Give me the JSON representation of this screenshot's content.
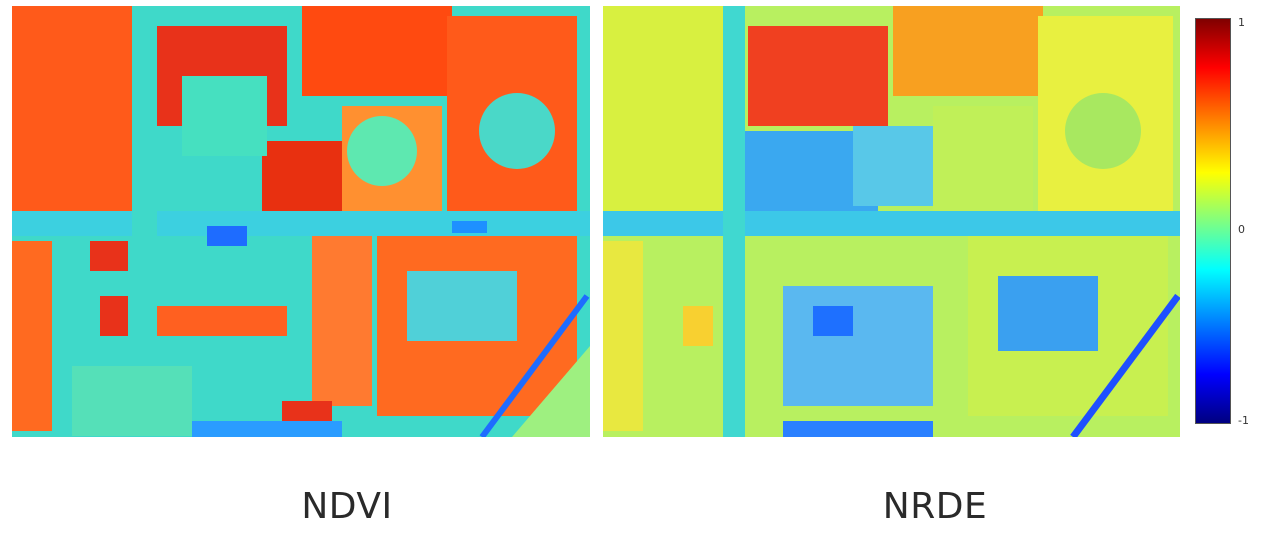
{
  "panels": [
    {
      "id": "ndvi",
      "label": "NDVI"
    },
    {
      "id": "nrde",
      "label": "NRDE"
    }
  ],
  "colorbar": {
    "ticks": [
      "1",
      "0",
      "-1"
    ],
    "colors": [
      "#800000",
      "#ff0000",
      "#ff8000",
      "#ffff00",
      "#80ff80",
      "#00ffff",
      "#0080ff",
      "#0000ff",
      "#000080"
    ]
  }
}
